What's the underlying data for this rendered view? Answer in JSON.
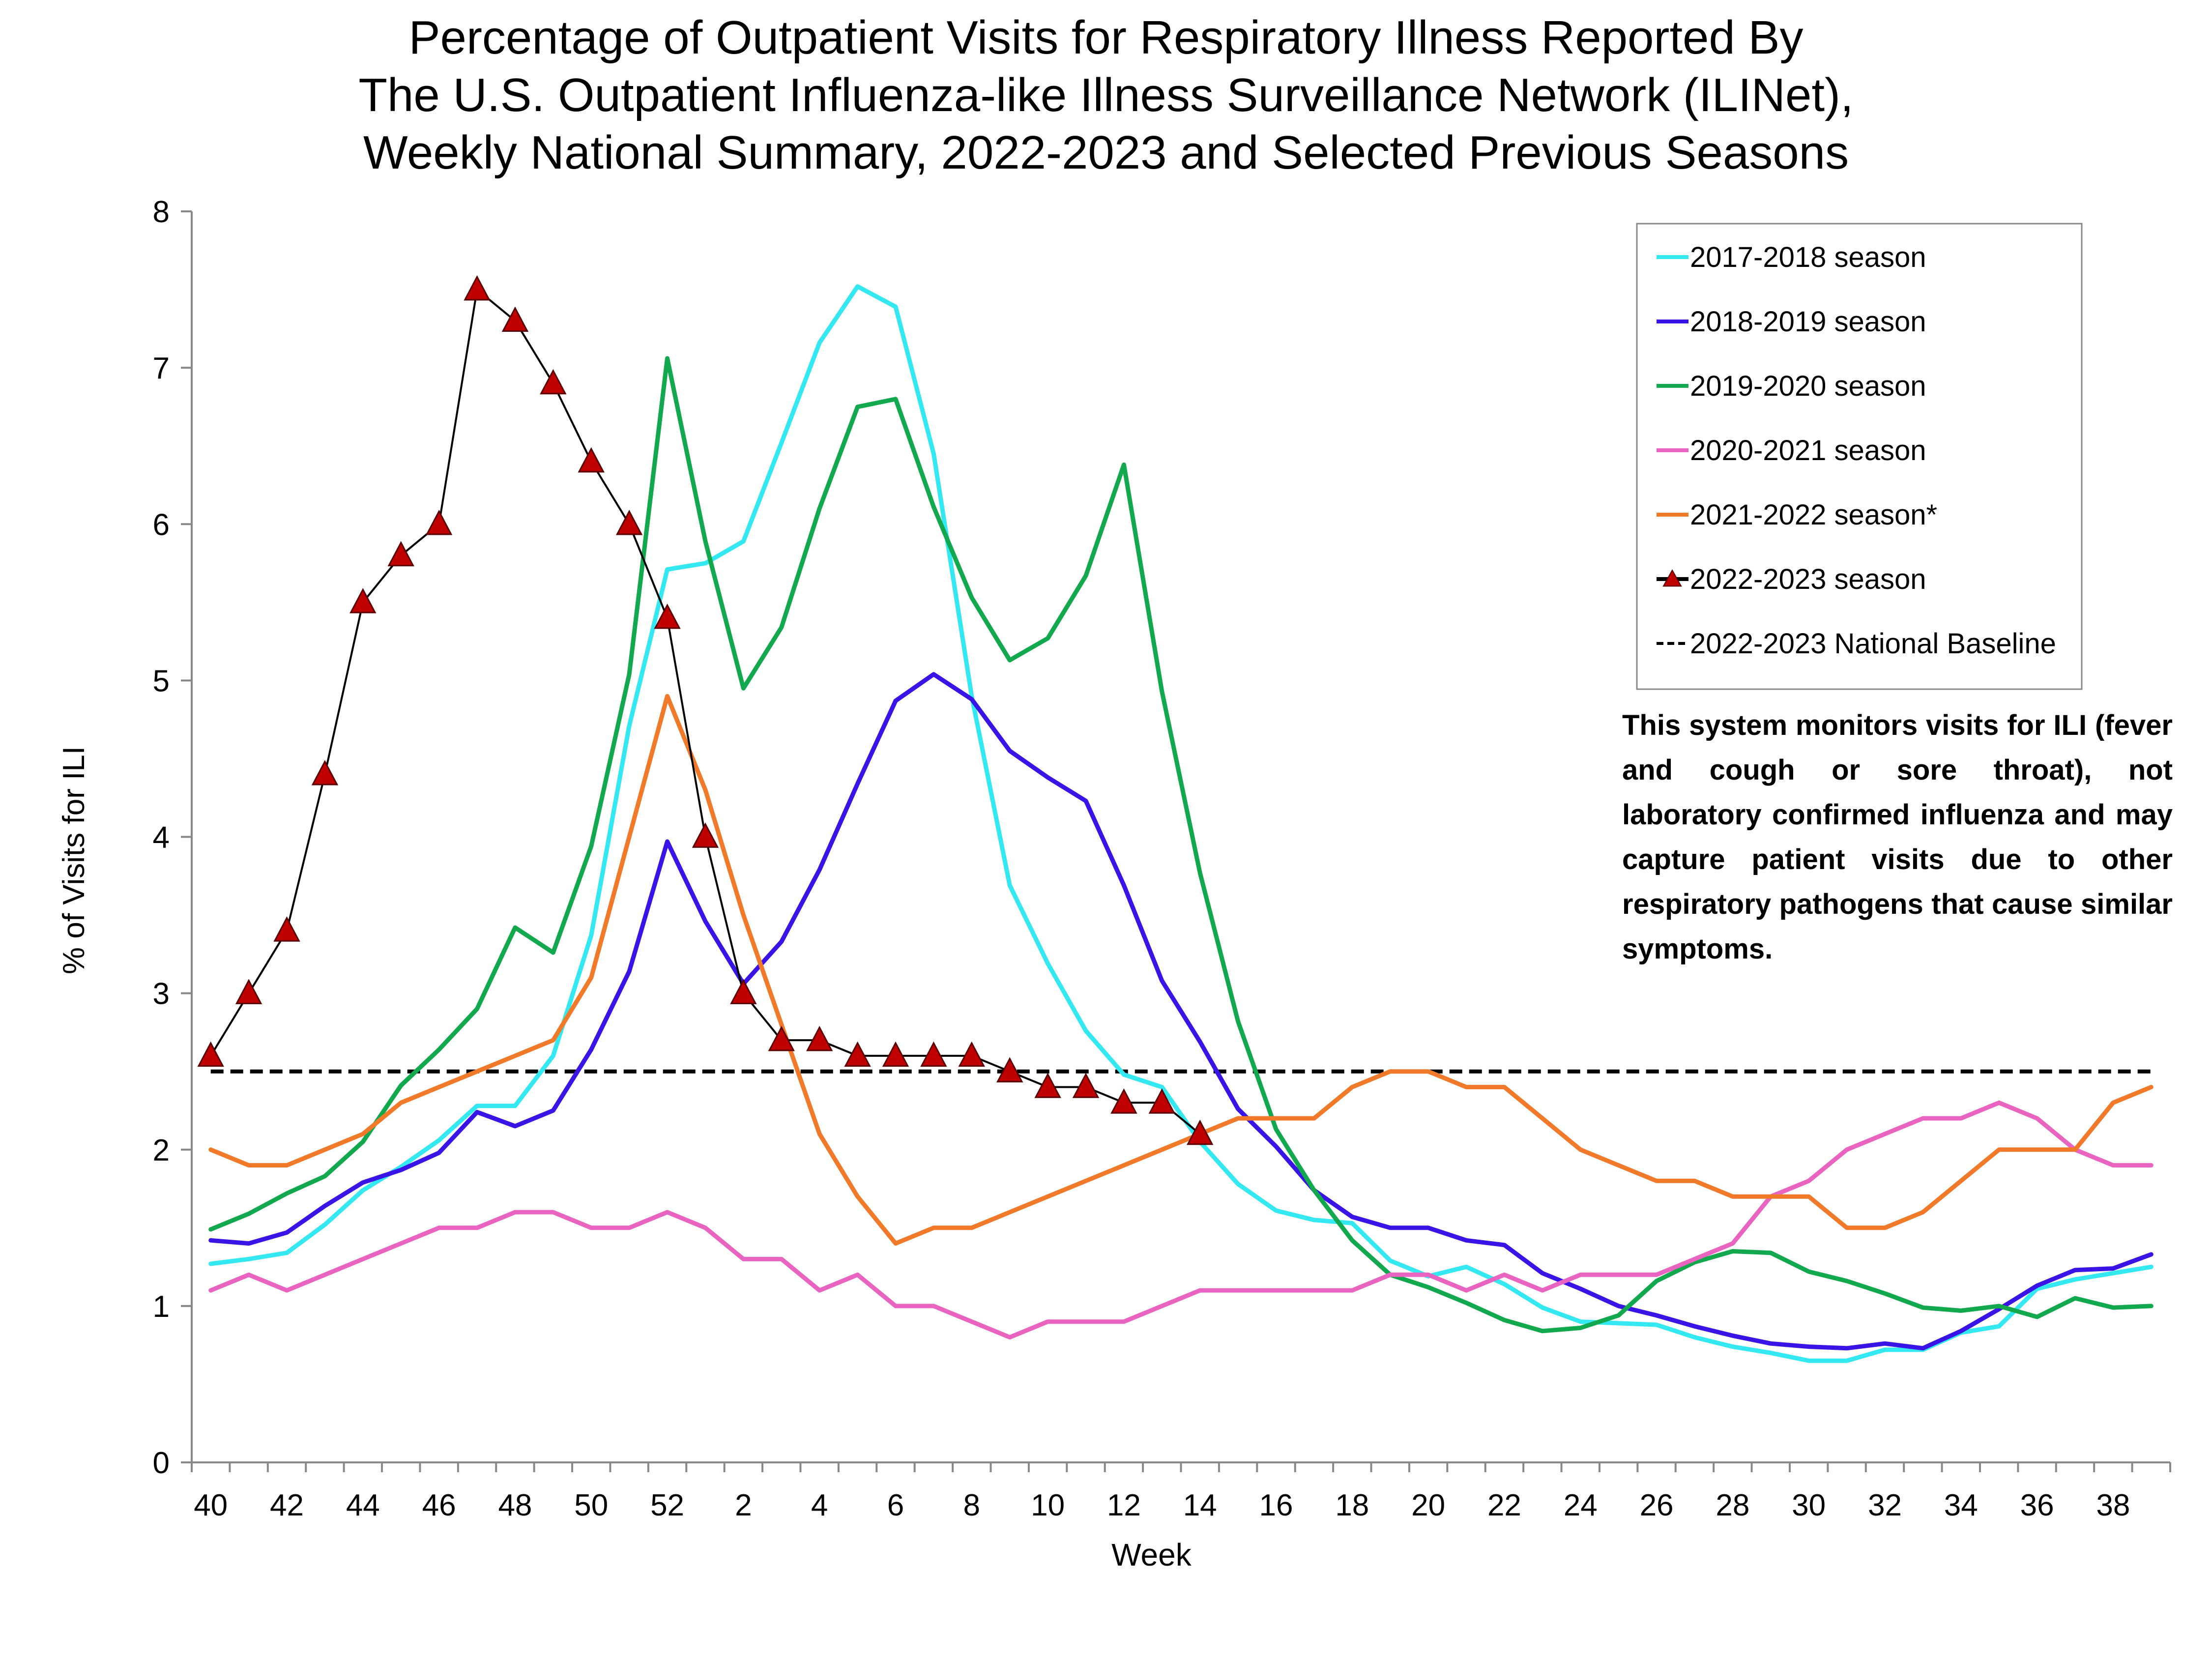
{
  "chart_data": {
    "type": "line",
    "title": [
      "Percentage of Outpatient Visits for Respiratory Illness Reported By",
      "The U.S. Outpatient Influenza-like Illness Surveillance Network (ILINet),",
      "Weekly National Summary, 2022-2023 and Selected Previous Seasons"
    ],
    "xlabel": "Week",
    "ylabel": "% of Visits for ILI",
    "ylim": [
      0,
      8
    ],
    "yticks": [
      0,
      1,
      2,
      3,
      4,
      5,
      6,
      7,
      8
    ],
    "x_categories": [
      "40",
      "41",
      "42",
      "43",
      "44",
      "45",
      "46",
      "47",
      "48",
      "49",
      "50",
      "51",
      "52",
      "1",
      "2",
      "3",
      "4",
      "5",
      "6",
      "7",
      "8",
      "9",
      "10",
      "11",
      "12",
      "13",
      "14",
      "15",
      "16",
      "17",
      "18",
      "19",
      "20",
      "21",
      "22",
      "23",
      "24",
      "25",
      "26",
      "27",
      "28",
      "29",
      "30",
      "31",
      "32",
      "33",
      "34",
      "35",
      "36",
      "37",
      "38",
      "39"
    ],
    "x_tick_labels": [
      "40",
      "42",
      "44",
      "46",
      "48",
      "50",
      "52",
      "2",
      "4",
      "6",
      "8",
      "10",
      "12",
      "14",
      "16",
      "18",
      "20",
      "22",
      "24",
      "26",
      "28",
      "30",
      "32",
      "34",
      "36",
      "38"
    ],
    "grid": false,
    "legend_position": "top-right",
    "baseline": {
      "name": "2022-2023 National Baseline",
      "value": 2.5,
      "color": "#000000",
      "dashed": true
    },
    "series": [
      {
        "name": "2017-2018 season",
        "color": "#33e8f0",
        "values": [
          1.27,
          1.3,
          1.34,
          1.52,
          1.74,
          1.89,
          2.06,
          2.28,
          2.28,
          2.6,
          3.37,
          4.71,
          5.71,
          5.75,
          5.89,
          6.52,
          7.16,
          7.52,
          7.39,
          6.45,
          4.9,
          3.69,
          3.19,
          2.76,
          2.48,
          2.4,
          2.05,
          1.78,
          1.61,
          1.55,
          1.53,
          1.29,
          1.19,
          1.25,
          1.14,
          0.99,
          0.9,
          0.89,
          0.88,
          0.8,
          0.74,
          0.7,
          0.65,
          0.65,
          0.72,
          0.72,
          0.83,
          0.87,
          1.11,
          1.17,
          1.21,
          1.25
        ]
      },
      {
        "name": "2018-2019 season",
        "color": "#3a14e6",
        "values": [
          1.42,
          1.4,
          1.47,
          1.64,
          1.79,
          1.87,
          1.98,
          2.24,
          2.15,
          2.25,
          2.64,
          3.14,
          3.97,
          3.46,
          3.06,
          3.33,
          3.79,
          4.34,
          4.87,
          5.04,
          4.88,
          4.55,
          4.38,
          4.23,
          3.69,
          3.08,
          2.69,
          2.26,
          2.02,
          1.74,
          1.57,
          1.5,
          1.5,
          1.42,
          1.39,
          1.21,
          1.11,
          1.0,
          0.94,
          0.87,
          0.81,
          0.76,
          0.74,
          0.73,
          0.76,
          0.73,
          0.84,
          0.98,
          1.13,
          1.23,
          1.24,
          1.33
        ]
      },
      {
        "name": "2019-2020 season",
        "color": "#12a84e",
        "values": [
          1.49,
          1.59,
          1.72,
          1.83,
          2.05,
          2.41,
          2.64,
          2.9,
          3.42,
          3.26,
          3.94,
          5.04,
          7.06,
          5.89,
          4.95,
          5.34,
          6.1,
          6.75,
          6.8,
          6.11,
          5.53,
          5.13,
          5.27,
          5.67,
          6.38,
          4.93,
          3.77,
          2.82,
          2.13,
          1.74,
          1.42,
          1.2,
          1.12,
          1.02,
          0.91,
          0.84,
          0.86,
          0.94,
          1.16,
          1.28,
          1.35,
          1.34,
          1.22,
          1.16,
          1.08,
          0.99,
          0.97,
          1.0,
          0.93,
          1.05,
          0.99,
          1.0
        ]
      },
      {
        "name": "2020-2021 season",
        "color": "#e864c0",
        "values": [
          1.1,
          1.2,
          1.1,
          1.2,
          1.3,
          1.4,
          1.5,
          1.5,
          1.6,
          1.6,
          1.5,
          1.5,
          1.6,
          1.5,
          1.3,
          1.3,
          1.1,
          1.2,
          1.0,
          1.0,
          0.9,
          0.8,
          0.9,
          0.9,
          0.9,
          1.0,
          1.1,
          1.1,
          1.1,
          1.1,
          1.1,
          1.2,
          1.2,
          1.1,
          1.2,
          1.1,
          1.2,
          1.2,
          1.2,
          1.3,
          1.4,
          1.7,
          1.8,
          2.0,
          2.1,
          2.2,
          2.2,
          2.3,
          2.2,
          2.0,
          1.9,
          1.9
        ]
      },
      {
        "name": "2021-2022 season*",
        "color": "#f07a2a",
        "values": [
          2.0,
          1.9,
          1.9,
          2.0,
          2.1,
          2.3,
          2.4,
          2.5,
          2.6,
          2.7,
          3.1,
          4.0,
          4.9,
          4.3,
          3.5,
          2.8,
          2.1,
          1.7,
          1.4,
          1.5,
          1.5,
          1.6,
          1.7,
          1.8,
          1.9,
          2.0,
          2.1,
          2.2,
          2.2,
          2.2,
          2.4,
          2.5,
          2.5,
          2.4,
          2.4,
          2.2,
          2.0,
          1.9,
          1.8,
          1.8,
          1.7,
          1.7,
          1.7,
          1.5,
          1.5,
          1.6,
          1.8,
          2.0,
          2.0,
          2.0,
          2.3,
          2.4
        ]
      },
      {
        "name": "2022-2023 season",
        "color": "#000000",
        "marker_color": "#c00000",
        "marker": "triangle",
        "values": [
          2.6,
          3.0,
          3.4,
          4.4,
          5.5,
          5.8,
          6.0,
          7.5,
          7.3,
          6.9,
          6.4,
          6.0,
          5.4,
          4.0,
          3.0,
          2.7,
          2.7,
          2.6,
          2.6,
          2.6,
          2.6,
          2.5,
          2.4,
          2.4,
          2.3,
          2.3,
          2.1
        ]
      }
    ],
    "annotation": [
      "This system monitors visits for ILI",
      "(fever and cough or sore throat),",
      "not laboratory confirmed influenza",
      "and may capture patient visits due",
      "to other respiratory pathogens",
      "that cause similar symptoms."
    ]
  }
}
